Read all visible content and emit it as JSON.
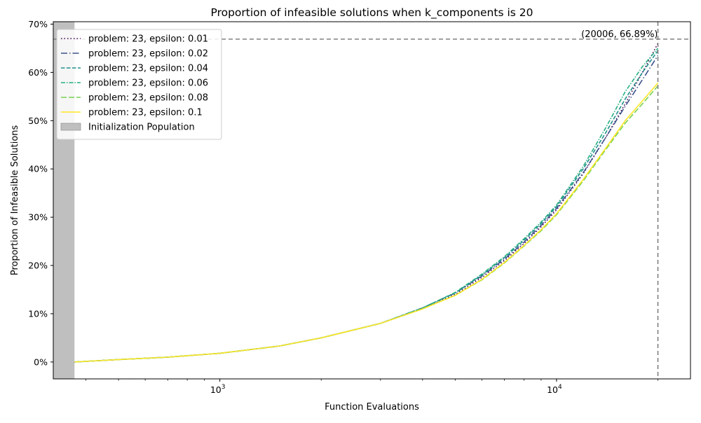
{
  "chart_data": {
    "type": "line",
    "title": "Proportion of infeasible solutions when k_components is 20",
    "xlabel": "Function Evaluations",
    "ylabel": "Proportion of Infeasible Solutions",
    "x_scale": "log",
    "xlim": [
      320,
      25000
    ],
    "ylim": [
      -0.035,
      0.705
    ],
    "y_tick_values": [
      0,
      0.1,
      0.2,
      0.3,
      0.4,
      0.5,
      0.6,
      0.7
    ],
    "y_tick_labels": [
      "0%",
      "10%",
      "20%",
      "30%",
      "40%",
      "50%",
      "60%",
      "70%"
    ],
    "x_ticks": [
      {
        "value": 1000,
        "base": "10",
        "exp": "3"
      },
      {
        "value": 10000,
        "base": "10",
        "exp": "4"
      }
    ],
    "grid": false,
    "legend_position": "top-left",
    "shaded_region": {
      "label": "Initialization Population",
      "x_start": 320,
      "x_end": 370,
      "color": "#bfbfbf"
    },
    "reference_lines": {
      "x": 20006,
      "y": 0.6689,
      "color": "#808080"
    },
    "annotation": "(20006, 66.89%)",
    "x": [
      370,
      500,
      700,
      1000,
      1500,
      2000,
      3000,
      4000,
      5000,
      6000,
      7000,
      8000,
      9000,
      10000,
      12000,
      14000,
      16000,
      18000,
      20006
    ],
    "series": [
      {
        "name": "problem: 23, epsilon: 0.01",
        "color": "#440154",
        "dash": "1.5,3",
        "values": [
          0,
          0.005,
          0.01,
          0.018,
          0.033,
          0.05,
          0.08,
          0.11,
          0.14,
          0.175,
          0.21,
          0.245,
          0.28,
          0.315,
          0.39,
          0.465,
          0.535,
          0.6,
          0.66
        ]
      },
      {
        "name": "problem: 23, epsilon: 0.02",
        "color": "#3b528b",
        "dash": "9,3,1.5,3",
        "values": [
          0,
          0.005,
          0.01,
          0.018,
          0.033,
          0.05,
          0.08,
          0.112,
          0.143,
          0.178,
          0.213,
          0.248,
          0.283,
          0.318,
          0.392,
          0.465,
          0.53,
          0.585,
          0.635
        ]
      },
      {
        "name": "problem: 23, epsilon: 0.04",
        "color": "#21918c",
        "dash": "5.5,2.5",
        "values": [
          0,
          0.005,
          0.01,
          0.018,
          0.033,
          0.05,
          0.08,
          0.112,
          0.143,
          0.18,
          0.216,
          0.252,
          0.287,
          0.322,
          0.4,
          0.475,
          0.545,
          0.6,
          0.645
        ]
      },
      {
        "name": "problem: 23, epsilon: 0.06",
        "color": "#27ad81",
        "dash": "6,2,1.5,2",
        "values": [
          0,
          0.005,
          0.01,
          0.018,
          0.033,
          0.05,
          0.08,
          0.112,
          0.144,
          0.182,
          0.218,
          0.255,
          0.29,
          0.325,
          0.405,
          0.485,
          0.56,
          0.612,
          0.65
        ]
      },
      {
        "name": "problem: 23, epsilon: 0.08",
        "color": "#7ad151",
        "dash": "8,3",
        "values": [
          0,
          0.005,
          0.01,
          0.018,
          0.033,
          0.05,
          0.08,
          0.11,
          0.138,
          0.17,
          0.205,
          0.24,
          0.272,
          0.305,
          0.375,
          0.44,
          0.495,
          0.535,
          0.572
        ]
      },
      {
        "name": "problem: 23, epsilon: 0.1",
        "color": "#fde725",
        "dash": "",
        "values": [
          0,
          0.005,
          0.01,
          0.018,
          0.033,
          0.05,
          0.08,
          0.11,
          0.138,
          0.171,
          0.206,
          0.241,
          0.274,
          0.307,
          0.378,
          0.443,
          0.5,
          0.541,
          0.578
        ]
      }
    ]
  }
}
